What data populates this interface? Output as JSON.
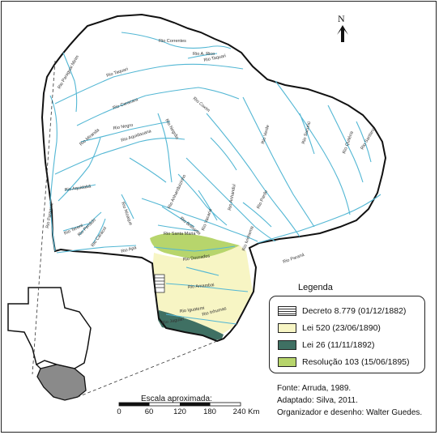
{
  "north_label": "N",
  "rivers": [
    "Rio Correntes",
    "Rio A. Rico",
    "Rio Taquari",
    "Rio Paraguai Mirim",
    "Rio Caracara",
    "Rio Coxim",
    "Rio Negro",
    "Rio Aquidauana",
    "Rio Miranda",
    "Rio Negrão",
    "Rio Verde",
    "Rio Sucuriú",
    "Rio Quitéria",
    "Rio Santana",
    "Rio Aquidabã",
    "Rio Paraguai",
    "Rio Apa",
    "Rio Tereré",
    "Rio Perdido",
    "Rio Caracol",
    "Rio Nioaque",
    "Rio Anhanduí",
    "Rio Ivinhema",
    "Rio Pardo",
    "Rio Anhanduizinho",
    "Rio Vacaria",
    "Rio Brilhante",
    "Rio Santa Maria",
    "Rio Dourados",
    "Rio Amambai",
    "Rio Paraná",
    "Rio Iguatemi",
    "Rio Jaguari",
    "Rio Inhumas"
  ],
  "legend": {
    "title": "Legenda",
    "items": [
      {
        "label": "Decreto 8.779 (01/12/1882)",
        "color": "#ffffff"
      },
      {
        "label": "Lei 520 (23/06/1890)",
        "color": "#f7f5c4"
      },
      {
        "label": "Lei 26 (11/11/1892)",
        "color": "#3f7063"
      },
      {
        "label": "Resolução 103 (15/06/1895)",
        "color": "#b7d56c"
      }
    ]
  },
  "scale": {
    "title": "Escala aproximada:",
    "ticks": [
      "0",
      "60",
      "120",
      "180",
      "240 Km"
    ]
  },
  "source": {
    "fonte": "Fonte: Arruda, 1989.",
    "adaptado": "Adaptado: Silva, 2011.",
    "organizador": "Organizador e desenho: Walter Guedes."
  },
  "colors": {
    "river": "#53b7d4",
    "boundary": "#111111",
    "inset_state": "#8a8a8a"
  }
}
